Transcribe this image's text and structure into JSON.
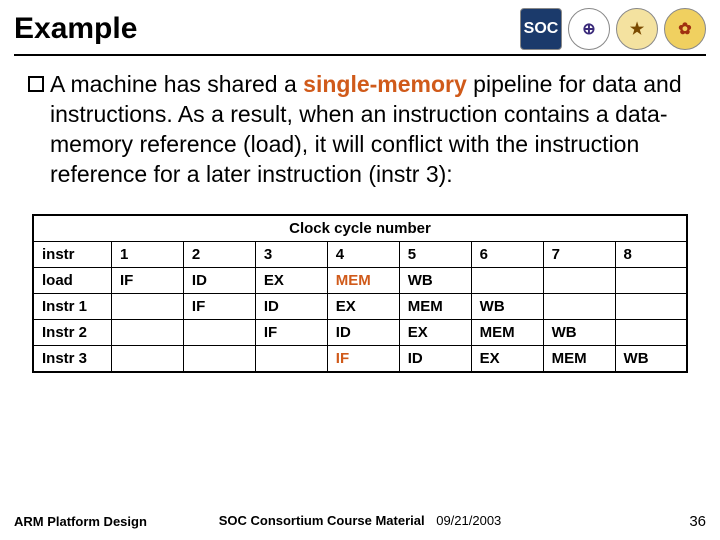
{
  "title": "Example",
  "logos": [
    {
      "label": "SOC",
      "bg": "#1b3a6b",
      "fg": "#ffffff",
      "radius": "4px"
    },
    {
      "label": "⊕",
      "bg": "#ffffff",
      "fg": "#3a2a7a",
      "radius": "50%"
    },
    {
      "label": "★",
      "bg": "#f4e2a0",
      "fg": "#7a4a00",
      "radius": "50%"
    },
    {
      "label": "✿",
      "bg": "#f0d060",
      "fg": "#a03010",
      "radius": "50%"
    }
  ],
  "bullet": {
    "pre": "A machine has shared a ",
    "highlight": "single-memory",
    "post": " pipeline for data and instructions. As a result, when an instruction contains a data-memory reference (load), it will conflict with the instruction reference for a later instruction (instr 3):"
  },
  "table": {
    "caption": "Clock cycle number",
    "col0_header": "instr",
    "cycle_headers": [
      "1",
      "2",
      "3",
      "4",
      "5",
      "6",
      "7",
      "8"
    ],
    "rows": [
      {
        "label": "load",
        "cells": [
          "IF",
          "ID",
          "EX",
          "MEM",
          "WB",
          "",
          "",
          ""
        ],
        "hl_idx": 3
      },
      {
        "label": "Instr 1",
        "cells": [
          "",
          "IF",
          "ID",
          "EX",
          "MEM",
          "WB",
          "",
          ""
        ],
        "hl_idx": -1
      },
      {
        "label": "Instr 2",
        "cells": [
          "",
          "",
          "IF",
          "ID",
          "EX",
          "MEM",
          "WB",
          ""
        ],
        "hl_idx": -1
      },
      {
        "label": "Instr 3",
        "cells": [
          "",
          "",
          "",
          "IF",
          "ID",
          "EX",
          "MEM",
          "WB"
        ],
        "hl_idx": 3
      }
    ],
    "highlight_color": "#d05a1a",
    "col_widths_pct": [
      12,
      11,
      11,
      11,
      11,
      11,
      11,
      11,
      11
    ]
  },
  "footer": {
    "left": "ARM Platform Design",
    "center": "SOC Consortium Course Material",
    "date": "09/21/2003",
    "page": "36"
  },
  "colors": {
    "text": "#000000",
    "highlight": "#d05a1a",
    "background": "#ffffff",
    "rule": "#000000"
  }
}
